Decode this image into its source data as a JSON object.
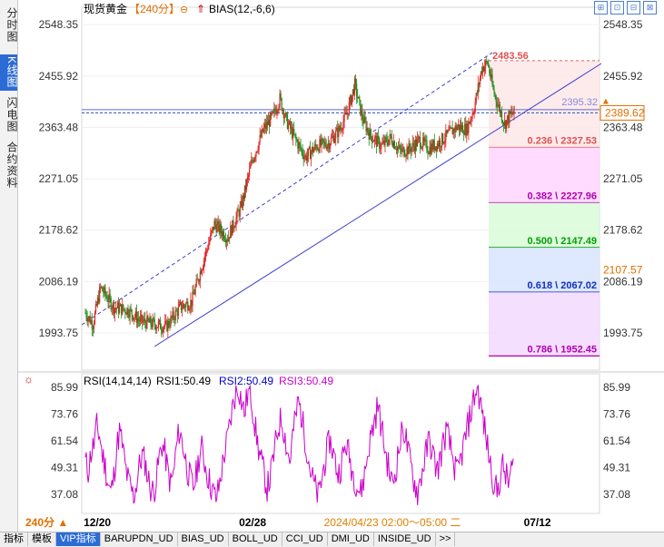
{
  "sidebar": {
    "tabs": [
      {
        "label": "分时图",
        "active": false
      },
      {
        "label": "K线图",
        "active": true
      },
      {
        "label": "闪电图",
        "active": false
      },
      {
        "label": "合约资料",
        "active": false
      }
    ]
  },
  "header": {
    "symbol": "现货黄金",
    "period": "【240分】",
    "indicator": "BIAS(12,-6,6)"
  },
  "top_icons": [
    "zoom-icon",
    "expand-icon",
    "restore-icon",
    "close-icon"
  ],
  "chart_data": [
    {
      "type": "candlestick",
      "title": "现货黄金",
      "ylim": [
        1940,
        2560
      ],
      "yticks": [
        2548.35,
        2455.92,
        2363.48,
        2271.05,
        2178.62,
        2086.19,
        1993.75
      ],
      "current_price": 2389.62,
      "right_label": "2107.57",
      "peak_label": "2483.56",
      "level_line": 2395.32,
      "level_line_label": "2395.32",
      "fib_levels": [
        {
          "label": "0.236 \\ 2327.53",
          "value": 2327.53,
          "color": "#e05050"
        },
        {
          "label": "0.382 \\ 2227.96",
          "value": 2227.96,
          "color": "#b000b0"
        },
        {
          "label": "0.500 \\ 2147.49",
          "value": 2147.49,
          "color": "#00a000"
        },
        {
          "label": "0.618 \\ 2067.02",
          "value": 2067.02,
          "color": "#1030c0"
        },
        {
          "label": "0.786 \\ 1952.45",
          "value": 1952.45,
          "color": "#b000b0"
        }
      ],
      "anchors": [
        [
          0,
          2030
        ],
        [
          8,
          2010
        ],
        [
          16,
          2075
        ],
        [
          30,
          2040
        ],
        [
          45,
          2035
        ],
        [
          58,
          2015
        ],
        [
          72,
          2010
        ],
        [
          85,
          2005
        ],
        [
          100,
          2040
        ],
        [
          112,
          2050
        ],
        [
          122,
          2110
        ],
        [
          136,
          2190
        ],
        [
          150,
          2165
        ],
        [
          164,
          2220
        ],
        [
          176,
          2305
        ],
        [
          188,
          2360
        ],
        [
          198,
          2385
        ],
        [
          205,
          2415
        ],
        [
          212,
          2375
        ],
        [
          222,
          2340
        ],
        [
          232,
          2310
        ],
        [
          244,
          2330
        ],
        [
          256,
          2335
        ],
        [
          268,
          2360
        ],
        [
          276,
          2390
        ],
        [
          284,
          2440
        ],
        [
          292,
          2380
        ],
        [
          300,
          2350
        ],
        [
          312,
          2330
        ],
        [
          322,
          2345
        ],
        [
          332,
          2320
        ],
        [
          342,
          2325
        ],
        [
          352,
          2340
        ],
        [
          362,
          2325
        ],
        [
          372,
          2335
        ],
        [
          382,
          2350
        ],
        [
          392,
          2365
        ],
        [
          402,
          2360
        ],
        [
          410,
          2400
        ],
        [
          418,
          2470
        ],
        [
          424,
          2480
        ],
        [
          430,
          2430
        ],
        [
          436,
          2400
        ],
        [
          442,
          2370
        ],
        [
          448,
          2385
        ],
        [
          452,
          2390
        ]
      ]
    },
    {
      "type": "line",
      "title": "RSI(14,14,14)",
      "ylim": [
        30,
        89
      ],
      "yticks": [
        85.99,
        73.76,
        61.54,
        49.31,
        37.08
      ],
      "series": [
        {
          "name": "RSI1:50.49",
          "color": "#000000"
        },
        {
          "name": "RSI2:50.49",
          "color": "#0000cc"
        },
        {
          "name": "RSI3:50.49",
          "color": "#cc00cc"
        }
      ],
      "rsi_values": [
        52,
        48,
        56,
        60,
        68,
        64,
        55,
        50,
        42,
        38,
        45,
        58,
        66,
        60,
        50,
        44,
        40,
        36,
        42,
        50,
        55,
        52,
        45,
        40,
        38,
        44,
        54,
        60,
        56,
        48,
        42,
        46,
        58,
        66,
        62,
        55,
        48,
        44,
        40,
        46,
        54,
        58,
        52,
        46,
        42,
        38,
        35,
        40,
        48,
        56,
        62,
        70,
        78,
        84,
        86,
        80,
        74,
        82,
        85,
        76,
        66,
        58,
        52,
        46,
        40,
        44,
        52,
        60,
        68,
        72,
        66,
        58,
        52,
        64,
        72,
        80,
        74,
        66,
        58,
        50,
        44,
        40,
        36,
        42,
        50,
        56,
        62,
        58,
        52,
        46,
        50,
        56,
        60,
        54,
        48,
        44,
        40,
        38,
        44,
        52,
        60,
        66,
        72,
        78,
        70,
        62,
        54,
        48,
        42,
        46,
        54,
        62,
        68,
        62,
        54,
        48,
        42,
        38,
        44,
        50,
        56,
        62,
        58,
        52,
        48,
        54,
        60,
        66,
        62,
        56,
        50,
        46,
        52,
        58,
        64,
        70,
        76,
        82,
        86,
        80,
        72,
        64,
        56,
        48,
        42,
        38,
        44,
        50,
        46,
        42,
        48,
        50
      ],
      "x_labels": [
        {
          "label": "12/20",
          "pos": 0.03
        },
        {
          "label": "02/28",
          "pos": 0.33
        },
        {
          "label": "2024/04/23 02:00～05:00 二",
          "pos": 0.6,
          "color": "#e08000"
        },
        {
          "label": "07/12",
          "pos": 0.88
        }
      ]
    }
  ],
  "period_badge": "240分 ▲",
  "bottom_tabs": [
    {
      "label": "指标",
      "active": false
    },
    {
      "label": "模板",
      "active": false
    },
    {
      "label": "VIP指标",
      "active": true
    },
    {
      "label": "BARUPDN_UD",
      "active": false
    },
    {
      "label": "BIAS_UD",
      "active": false
    },
    {
      "label": "BOLL_UD",
      "active": false
    },
    {
      "label": "CCI_UD",
      "active": false
    },
    {
      "label": "DMI_UD",
      "active": false
    },
    {
      "label": "INSIDE_UD",
      "active": false
    },
    {
      "label": ">>",
      "active": false
    }
  ]
}
